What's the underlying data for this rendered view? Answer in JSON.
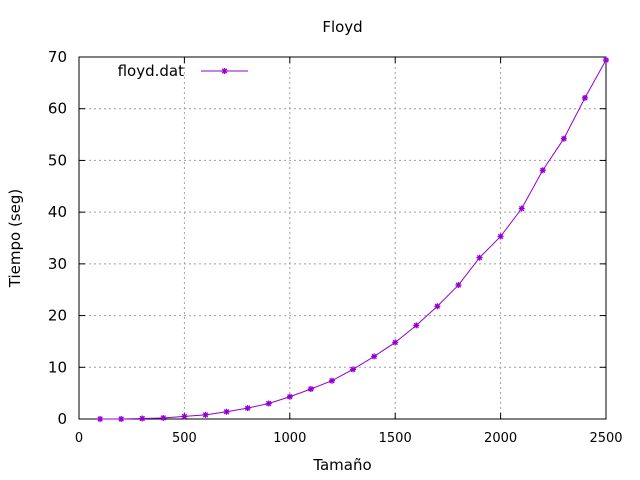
{
  "chart_data": {
    "type": "line",
    "title": "Floyd",
    "xlabel": "Tamaño",
    "ylabel": "Tiempo (seg)",
    "xlim": [
      0,
      2500
    ],
    "ylim": [
      0,
      70
    ],
    "xticks": [
      0,
      500,
      1000,
      1500,
      2000,
      2500
    ],
    "yticks": [
      0,
      10,
      20,
      30,
      40,
      50,
      60,
      70
    ],
    "grid": true,
    "legend_position": "top-left",
    "series": [
      {
        "name": "floyd.dat",
        "color": "#9400d3",
        "marker": "asterisk",
        "x": [
          100,
          200,
          300,
          400,
          500,
          600,
          700,
          800,
          900,
          1000,
          1100,
          1200,
          1300,
          1400,
          1500,
          1600,
          1700,
          1800,
          1900,
          2000,
          2100,
          2200,
          2300,
          2400,
          2500
        ],
        "y": [
          0.0,
          0.0,
          0.1,
          0.2,
          0.5,
          0.8,
          1.4,
          2.1,
          3.0,
          4.3,
          5.8,
          7.4,
          9.6,
          12.1,
          14.8,
          18.1,
          21.8,
          25.9,
          31.2,
          35.3,
          40.7,
          48.1,
          54.2,
          62.1,
          69.4
        ]
      }
    ]
  }
}
